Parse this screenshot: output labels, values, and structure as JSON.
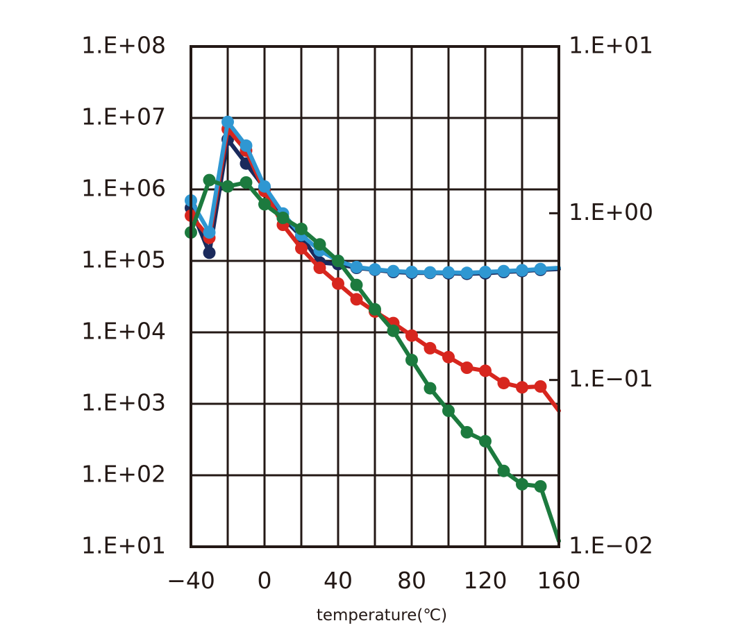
{
  "chart_data": {
    "type": "line",
    "title": "",
    "xlabel": "temperature(℃)",
    "ylabel_left": "",
    "ylabel_right": "",
    "x_range": [
      -40,
      160
    ],
    "x_ticks": [
      -40,
      0,
      40,
      80,
      120,
      160
    ],
    "x_tick_labels": [
      "−40",
      "0",
      "40",
      "80",
      "120",
      "160"
    ],
    "y_left_scale": "log",
    "y_left_range": [
      10,
      100000000
    ],
    "y_left_ticks": [
      10,
      100,
      1000,
      10000,
      100000,
      1000000,
      10000000,
      100000000
    ],
    "y_left_tick_labels": [
      "1.E+01",
      "1.E+02",
      "1.E+03",
      "1.E+04",
      "1.E+05",
      "1.E+06",
      "1.E+07",
      "1.E+08"
    ],
    "y_right_scale": "log",
    "y_right_range": [
      0.01,
      10
    ],
    "y_right_ticks": [
      0.01,
      0.1,
      1,
      10
    ],
    "y_right_tick_labels": [
      "1.E−02",
      "1.E−01",
      "1.E+00",
      "1.E+01"
    ],
    "grid": true,
    "legend": "none",
    "series": [
      {
        "color": "#1a2a5c",
        "x": [
          -40,
          -30,
          -20,
          -10,
          0,
          10,
          20,
          30,
          40,
          50,
          60,
          70,
          80,
          90,
          100,
          110,
          120,
          130,
          140,
          150,
          160
        ],
        "y": [
          550000,
          130000,
          5000000,
          2300000,
          1050000,
          400000,
          220000,
          95000,
          90000,
          80000,
          75000,
          70000,
          68000,
          68000,
          67000,
          66000,
          67000,
          70000,
          72000,
          75000,
          77000
        ]
      },
      {
        "color": "#d7261e",
        "x": [
          -40,
          -30,
          -20,
          -10,
          0,
          10,
          20,
          30,
          40,
          50,
          60,
          70,
          80,
          90,
          100,
          110,
          120,
          130,
          140,
          150,
          160
        ],
        "y": [
          430000,
          210000,
          7000000,
          3500000,
          950000,
          320000,
          150000,
          80000,
          48000,
          29000,
          19500,
          13500,
          9000,
          6000,
          4500,
          3200,
          2900,
          1950,
          1700,
          1750,
          800
        ]
      },
      {
        "color": "#2f97d2",
        "x": [
          -40,
          -30,
          -20,
          -10,
          0,
          10,
          20,
          30,
          40,
          50,
          60,
          70,
          80,
          90,
          100,
          110,
          120,
          130,
          140,
          150,
          160
        ],
        "y": [
          700000,
          250000,
          8800000,
          4100000,
          1100000,
          460000,
          230000,
          140000,
          100000,
          82000,
          76000,
          72000,
          70000,
          69000,
          69000,
          68000,
          70000,
          72000,
          74000,
          77000,
          80000
        ]
      },
      {
        "color": "#1c7a3e",
        "x": [
          -40,
          -30,
          -20,
          -10,
          0,
          10,
          20,
          30,
          40,
          50,
          60,
          70,
          80,
          90,
          100,
          110,
          120,
          130,
          140,
          150,
          160
        ],
        "y": [
          250000,
          1350000,
          1100000,
          1250000,
          620000,
          400000,
          280000,
          170000,
          100000,
          46000,
          21000,
          10500,
          4100,
          1650,
          800,
          400,
          300,
          115,
          75,
          70,
          12
        ]
      }
    ]
  }
}
